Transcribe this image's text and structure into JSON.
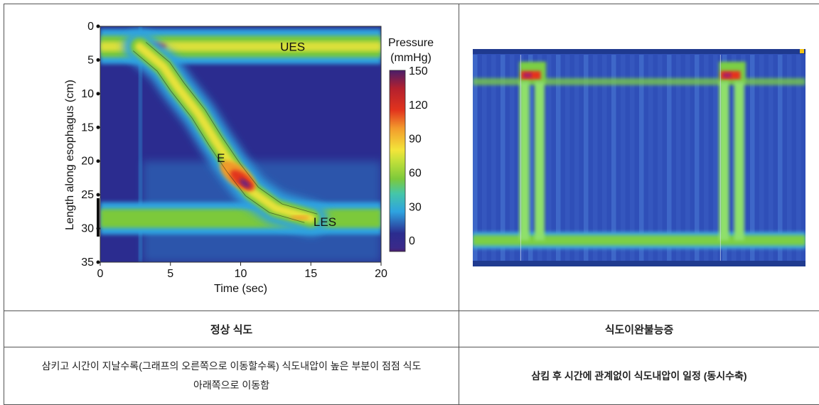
{
  "left_panel": {
    "title": "정상 식도",
    "description_line1": "삼키고 시간이 지날수록(그래프의 오른쪽으로 이동할수록) 식도내압이 높은 부분이 점점 식도",
    "description_line2": "아래쪽으로 이동함"
  },
  "right_panel": {
    "title": "식도이완불능증",
    "description": "삼킴 후 시간에 관계없이 식도내압이 일정 (동시수축)"
  },
  "chart_data": [
    {
      "type": "heatmap",
      "title": "",
      "xlabel": "Time (sec)",
      "ylabel": "Length along esophagus (cm)",
      "xlim": [
        0,
        20
      ],
      "ylim": [
        35,
        0
      ],
      "x_ticks": [
        0,
        5,
        10,
        15,
        20
      ],
      "y_ticks": [
        0,
        5,
        10,
        15,
        20,
        25,
        30,
        35
      ],
      "colorbar": {
        "label_line1": "Pressure",
        "label_line2": "(mmHg)",
        "ticks": [
          150,
          120,
          90,
          60,
          30,
          0
        ],
        "range": [
          -10,
          150
        ]
      },
      "annotations": [
        {
          "text": "UES",
          "x": 13.7,
          "y": 3
        },
        {
          "text": "E",
          "x": 8.6,
          "y": 19.5
        },
        {
          "text": "LES",
          "x": 16,
          "y": 29
        }
      ],
      "bands": [
        {
          "name": "ues",
          "t_start": 0,
          "t_end": 20,
          "depth": 3,
          "peak": 85
        },
        {
          "name": "les",
          "t_start": 0,
          "t_end": 20,
          "depth": 28.5,
          "peak": 45
        },
        {
          "name": "wave",
          "points": [
            [
              2.8,
              3
            ],
            [
              4.5,
              6
            ],
            [
              5.5,
              9
            ],
            [
              7,
              13
            ],
            [
              8.2,
              17
            ],
            [
              9.5,
              21
            ],
            [
              10.8,
              24.5
            ],
            [
              12.5,
              27
            ],
            [
              15,
              28.5
            ]
          ],
          "peak": 145
        }
      ],
      "colors": {
        "low": "#2b2c8f",
        "mid": "#2ea3e0",
        "green": "#7cc93b",
        "yellow": "#f3e53a",
        "red": "#e2341d",
        "high": "#4a1d6a"
      }
    },
    {
      "type": "heatmap",
      "title": "",
      "xlabel": "",
      "ylabel": "",
      "swallows": [
        {
          "t_start": 0.14,
          "t_end": 0.22
        },
        {
          "t_start": 0.74,
          "t_end": 0.82
        }
      ],
      "bands": [
        {
          "name": "upper-sphincter",
          "depth_fraction": 0.15
        },
        {
          "name": "lower-sphincter",
          "depth_fraction": 0.88
        }
      ],
      "colors": {
        "background": "#2f4fb8",
        "band": "#7ccf45",
        "column": "#8fe06a",
        "hot": "#e6321e"
      }
    }
  ]
}
